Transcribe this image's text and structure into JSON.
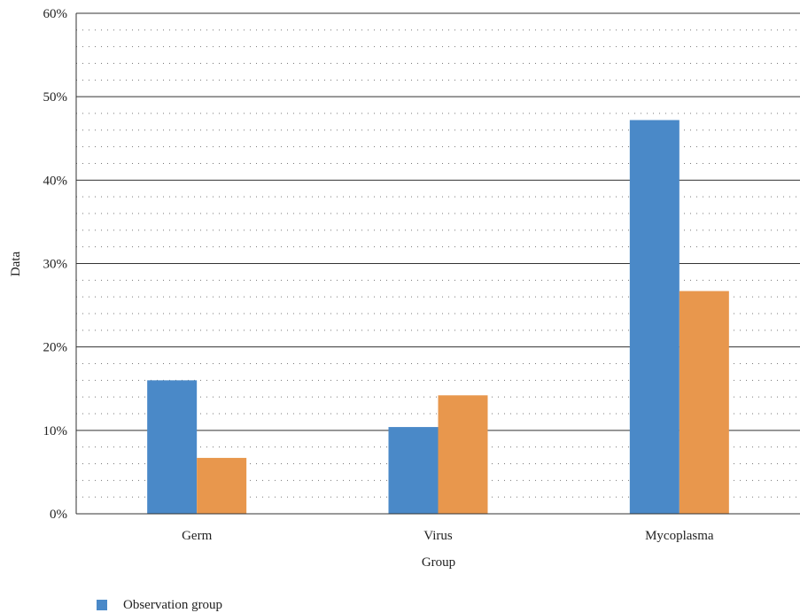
{
  "chart_data": {
    "type": "bar",
    "categories": [
      "Germ",
      "Virus",
      "Mycoplasma"
    ],
    "series": [
      {
        "name": "Observation group",
        "values": [
          16.0,
          10.4,
          47.2
        ],
        "color": "#4a89c8"
      },
      {
        "values": [
          6.7,
          14.2,
          26.7
        ],
        "color": "#e8974d"
      }
    ],
    "xlabel": "Group",
    "ylabel": "Data",
    "ylim": [
      0,
      60
    ],
    "yticks": [
      "0%",
      "10%",
      "20%",
      "30%",
      "40%",
      "50%",
      "60%"
    ],
    "grid": true,
    "legend_position": "bottom-left"
  },
  "legend": {
    "items": [
      {
        "label": "Observation group",
        "color": "#4a89c8"
      }
    ]
  }
}
